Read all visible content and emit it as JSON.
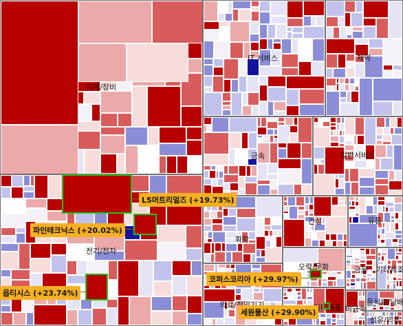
{
  "palette": {
    "up_strong": "#b80000",
    "up_mid": "#d95c5c",
    "up_light": "#eba9a9",
    "up_pale": "#f7dcdc",
    "flat": "#f4f2f6",
    "down_pale": "#e4e4f5",
    "down_light": "#c2c3ec",
    "down_mid": "#8b8ed6",
    "down_strong": "#13139e",
    "highlight_border": "#22c31f",
    "callout_bg": "#f6b022",
    "sector_border": "#6f6f6f"
  },
  "sectors": [
    {
      "id": "machinery",
      "label": "기계/장비"
    },
    {
      "id": "it-services",
      "label": "IT 서비스"
    },
    {
      "id": "pharma",
      "label": "제약"
    },
    {
      "id": "metals",
      "label": "금속"
    },
    {
      "id": "general-services",
      "label": "일반서비스"
    },
    {
      "id": "electrical-electronics",
      "label": "전기/전자"
    },
    {
      "id": "chemicals",
      "label": "화학"
    },
    {
      "id": "construction",
      "label": "건설"
    },
    {
      "id": "distribution",
      "label": "유통"
    },
    {
      "id": "entertainment-culture",
      "label": "오락/문화"
    },
    {
      "id": "finance",
      "label": "금융"
    },
    {
      "id": "other-manufacturing",
      "label": "기타제조"
    },
    {
      "id": "medical-precision",
      "label": "의료/정밀기기"
    },
    {
      "id": "food-tobacco",
      "label": "음식료/담배"
    },
    {
      "id": "textile-apparel",
      "label": "섬유/의류"
    },
    {
      "id": "nonmetal",
      "label": "비금속"
    },
    {
      "id": "other-products",
      "label": "기타제품"
    }
  ],
  "highlights": [
    {
      "id": "ls-materials",
      "label": "LS머트리얼즈 (+19.73%)"
    },
    {
      "id": "pine-technics",
      "label": "파인테크닉스 (+20.02%)"
    },
    {
      "id": "optisys",
      "label": "옵티시스 (+23.74%)"
    },
    {
      "id": "cosmax-korea",
      "label": "코퍼스코리아 (+29.97%)"
    },
    {
      "id": "sewon-mulsan",
      "label": "세원물산 (+29.90%)"
    }
  ]
}
